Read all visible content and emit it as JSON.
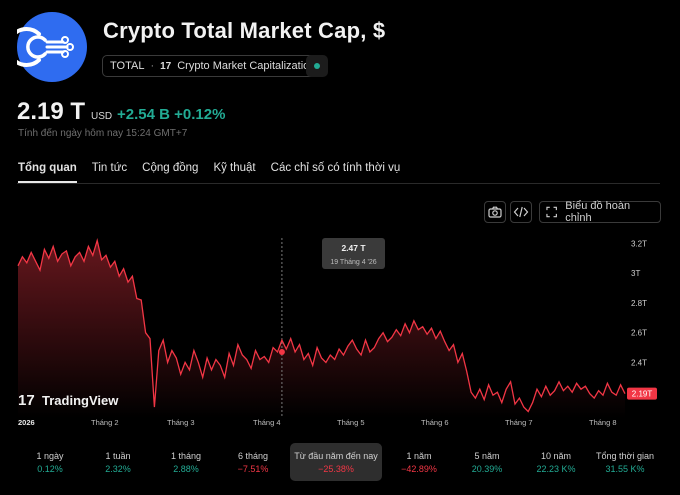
{
  "header": {
    "title": "Crypto Total Market Cap, $",
    "symbol": "TOTAL",
    "separator": "·",
    "source": "Crypto Market Capitalization",
    "source_logo": "17",
    "logo_icon": "network-nodes-icon"
  },
  "quote": {
    "price": "2.19 T",
    "currency": "USD",
    "change": "+2.54 B +0.12%",
    "as_of": "Tính đến ngày hôm nay 15:24 GMT+7"
  },
  "tabs": [
    {
      "label": "Tổng quan",
      "active": true
    },
    {
      "label": "Tin tức",
      "active": false
    },
    {
      "label": "Cộng đồng",
      "active": false
    },
    {
      "label": "Kỹ thuật",
      "active": false
    },
    {
      "label": "Các chỉ số có tính thời vụ",
      "active": false
    }
  ],
  "toolbar": {
    "camera_icon": "camera-icon",
    "embed_icon": "code-icon",
    "fullscreen_icon": "fullscreen-icon",
    "full_chart_label": "Biểu đồ hoàn chỉnh"
  },
  "watermark": {
    "label": "TradingView",
    "logo": "17"
  },
  "tooltip": {
    "value": "2.47 T",
    "date": "19 Tháng 4 '26"
  },
  "last_price_label": "2.19T",
  "colors": {
    "accent_up": "#22ab94",
    "accent_down": "#f23645",
    "line": "#f23645",
    "logo_bg": "#2f6cf0"
  },
  "chart_data": {
    "type": "area",
    "y_ticks": [
      "3.2T",
      "3T",
      "2.8T",
      "2.6T",
      "2.4T"
    ],
    "x_ticks": [
      "2026",
      "Tháng 2",
      "Tháng 3",
      "Tháng 4",
      "Tháng 5",
      "Tháng 6",
      "Tháng 7",
      "Tháng 8"
    ],
    "ylim": [
      2.04,
      3.25
    ],
    "grid": false,
    "series": [
      {
        "values": [
          3.05,
          3.11,
          3.07,
          3.14,
          3.08,
          3.02,
          3.16,
          3.1,
          3.18,
          3.08,
          3.13,
          3.15,
          3.05,
          3.11,
          3.14,
          3.08,
          3.18,
          3.12,
          3.22,
          3.09,
          3.12,
          3.04,
          3.08,
          2.98,
          3.03,
          2.94,
          2.98,
          2.83,
          2.82,
          2.6,
          2.56,
          2.1,
          2.48,
          2.55,
          2.4,
          2.48,
          2.43,
          2.32,
          2.4,
          2.35,
          2.48,
          2.4,
          2.3,
          2.43,
          2.35,
          2.42,
          2.38,
          2.3,
          2.46,
          2.38,
          2.52,
          2.45,
          2.42,
          2.36,
          2.48,
          2.42,
          2.44,
          2.4,
          2.5,
          2.47,
          2.55,
          2.49,
          2.56,
          2.47,
          2.52,
          2.42,
          2.46,
          2.38,
          2.5,
          2.43,
          2.4,
          2.45,
          2.42,
          2.49,
          2.45,
          2.51,
          2.55,
          2.49,
          2.45,
          2.55,
          2.47,
          2.5,
          2.56,
          2.6,
          2.54,
          2.57,
          2.62,
          2.58,
          2.66,
          2.6,
          2.68,
          2.62,
          2.64,
          2.59,
          2.63,
          2.56,
          2.61,
          2.54,
          2.48,
          2.52,
          2.4,
          2.46,
          2.34,
          2.2,
          2.16,
          2.22,
          2.15,
          2.25,
          2.18,
          2.2,
          2.13,
          2.22,
          2.27,
          2.12,
          2.16,
          2.1,
          2.07,
          2.13,
          2.22,
          2.17,
          2.24,
          2.18,
          2.21,
          2.27,
          2.21,
          2.24,
          2.2,
          2.26,
          2.22,
          2.24,
          2.19,
          2.16,
          2.21,
          2.18,
          2.26,
          2.2,
          2.18,
          2.25,
          2.19
        ]
      }
    ]
  },
  "periods": [
    {
      "label": "1 ngày",
      "value": "0.12%",
      "dir": "up",
      "selected": false
    },
    {
      "label": "1 tuần",
      "value": "2.32%",
      "dir": "up",
      "selected": false
    },
    {
      "label": "1 tháng",
      "value": "2.88%",
      "dir": "up",
      "selected": false
    },
    {
      "label": "6 tháng",
      "value": "−7.51%",
      "dir": "down",
      "selected": false
    },
    {
      "label": "Từ đầu năm đến nay",
      "value": "−25.38%",
      "dir": "down",
      "selected": true
    },
    {
      "label": "1 năm",
      "value": "−42.89%",
      "dir": "down",
      "selected": false
    },
    {
      "label": "5 năm",
      "value": "20.39%",
      "dir": "up",
      "selected": false
    },
    {
      "label": "10 năm",
      "value": "22.23 K%",
      "dir": "up",
      "selected": false
    },
    {
      "label": "Tổng thời gian",
      "value": "31.55 K%",
      "dir": "up",
      "selected": false
    }
  ]
}
